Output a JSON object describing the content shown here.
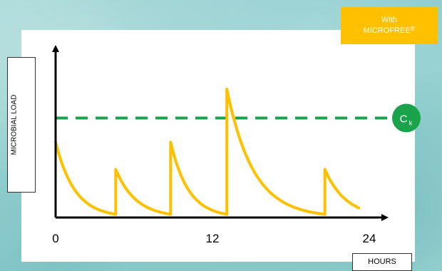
{
  "badge": {
    "line1": "With",
    "line2": "MICROFREE",
    "mark": "®"
  },
  "chart_data": {
    "type": "line",
    "title": "",
    "xlabel": "HOURS",
    "ylabel": "MICROBIAL LOAD",
    "x_ticks": [
      0,
      12,
      24
    ],
    "xlim": [
      0,
      24
    ],
    "ylim": [
      0,
      1
    ],
    "threshold": {
      "label": "C",
      "subscript": "k",
      "value": 0.62,
      "color": "#1aa34a",
      "style": "dashed"
    },
    "series": [
      {
        "color": "#ffc000",
        "segments": [
          {
            "x_start": 0.0,
            "x_end": 4.6,
            "y_start": 0.47,
            "y_end": 0.02
          },
          {
            "x_start": 4.6,
            "x_end": 8.8,
            "y_start": 0.3,
            "y_end": 0.02
          },
          {
            "x_start": 8.8,
            "x_end": 13.1,
            "y_start": 0.47,
            "y_end": 0.02
          },
          {
            "x_start": 13.1,
            "x_end": 20.6,
            "y_start": 0.8,
            "y_end": 0.02
          },
          {
            "x_start": 20.6,
            "x_end": 23.2,
            "y_start": 0.3,
            "y_end": 0.06
          }
        ]
      }
    ],
    "colors": {
      "axis": "#000000",
      "panel": "#ffffff",
      "badge": "#ffc000"
    }
  }
}
